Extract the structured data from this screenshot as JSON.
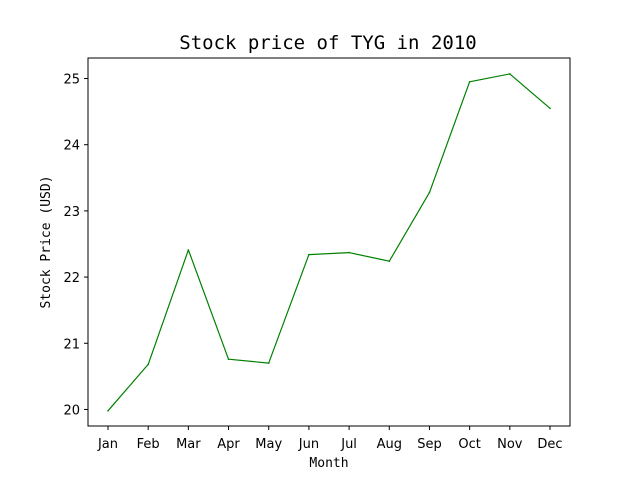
{
  "chart_data": {
    "type": "line",
    "title": "Stock price of TYG in 2010",
    "xlabel": "Month",
    "ylabel": "Stock Price (USD)",
    "categories": [
      "Jan",
      "Feb",
      "Mar",
      "Apr",
      "May",
      "Jun",
      "Jul",
      "Aug",
      "Sep",
      "Oct",
      "Nov",
      "Dec"
    ],
    "series": [
      {
        "values": [
          19.98,
          20.68,
          22.41,
          20.76,
          20.7,
          22.34,
          22.37,
          22.24,
          23.28,
          24.95,
          25.07,
          24.55
        ],
        "color": "#008000"
      }
    ],
    "ylim": [
      19.75,
      25.31
    ],
    "yticks": [
      20,
      21,
      22,
      23,
      24,
      25
    ],
    "ytick_labels": [
      "20",
      "21",
      "22",
      "23",
      "24",
      "25"
    ],
    "grid": false,
    "legend": false
  }
}
